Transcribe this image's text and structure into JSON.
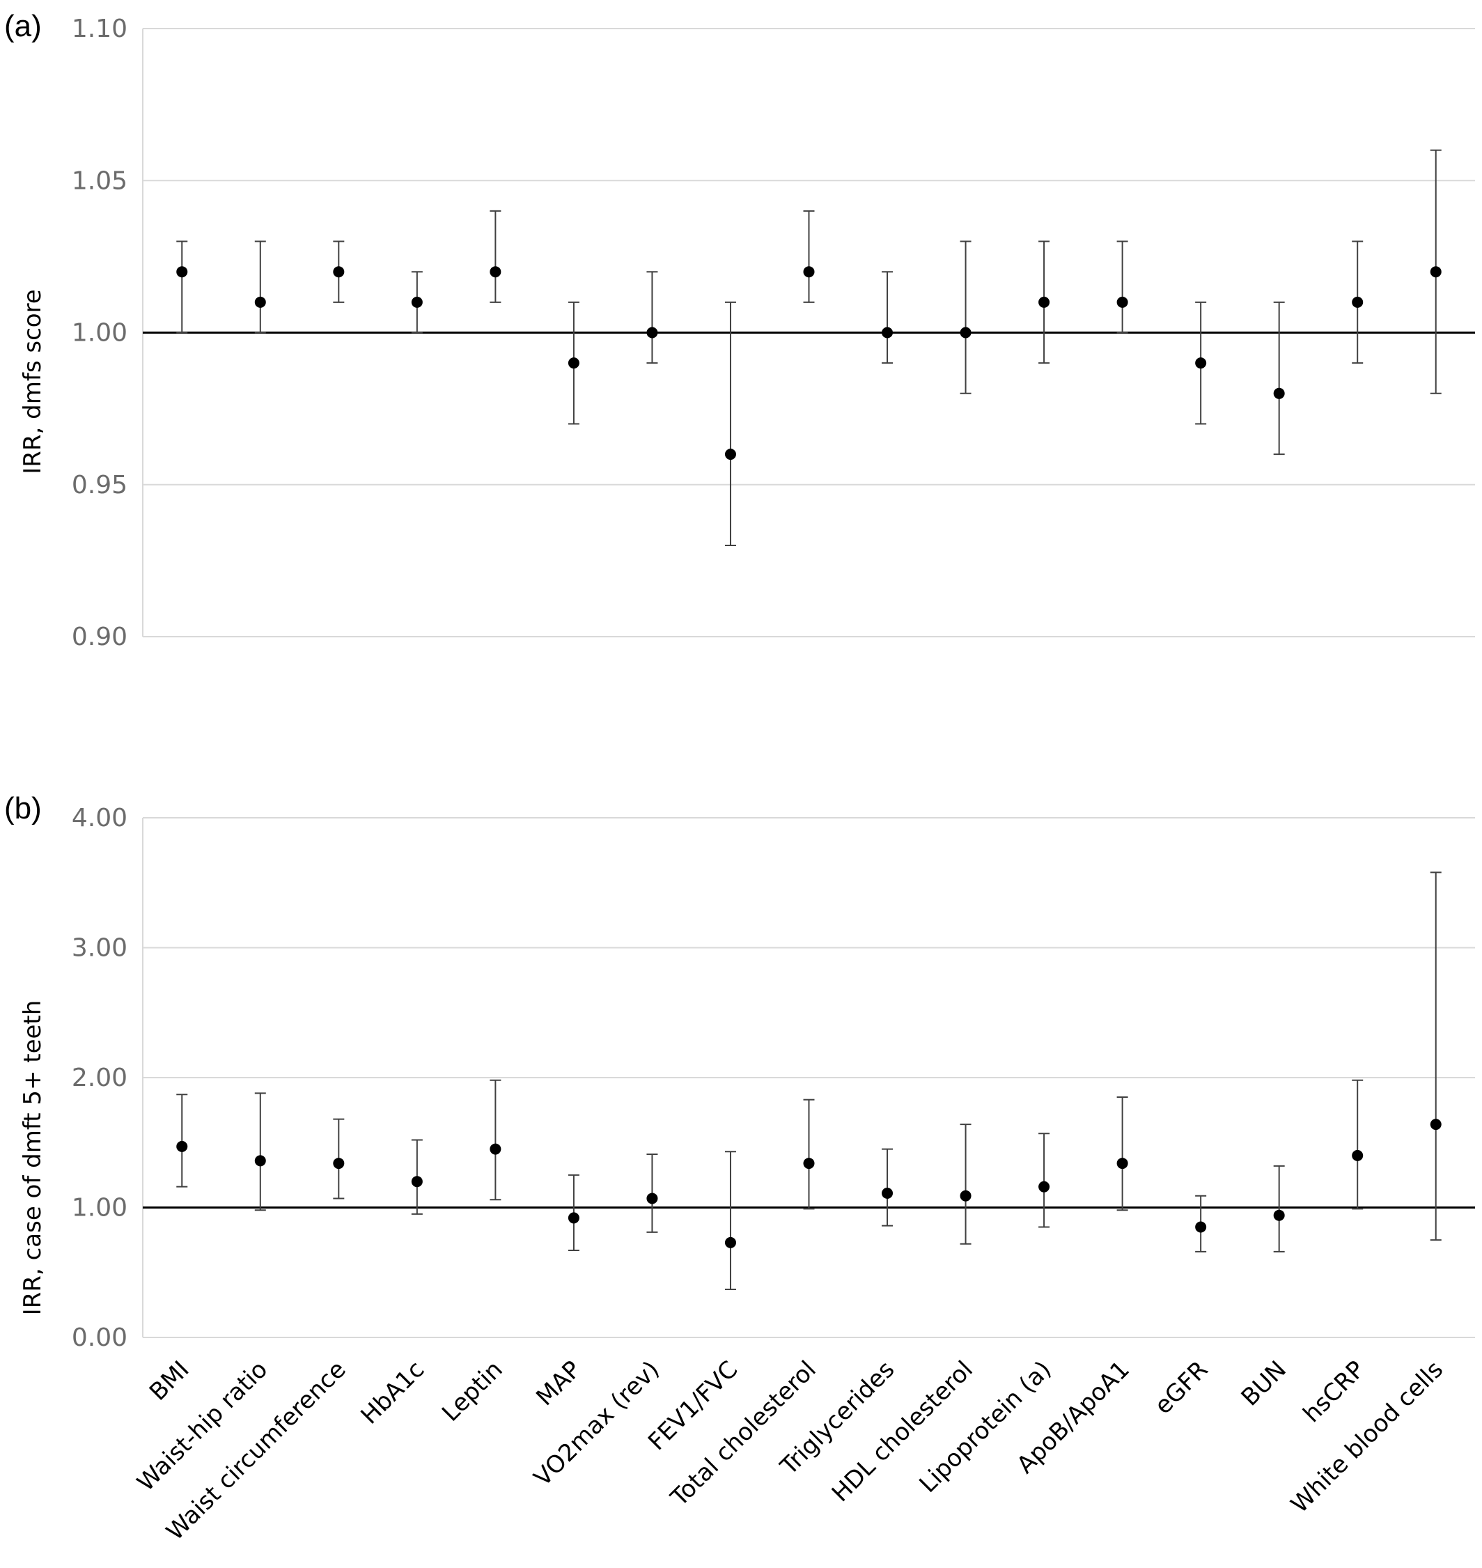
{
  "categories": [
    "BMI",
    "Waist-hip ratio",
    "Waist circumference",
    "HbA1c",
    "Leptin",
    "MAP",
    "VO2max (rev)",
    "FEV1/FVC",
    "Total cholesterol",
    "Triglycerides",
    "HDL cholesterol",
    "Lipoprotein (a)",
    "ApoB/ApoA1",
    "eGFR",
    "BUN",
    "hsCRP",
    "White blood cells"
  ],
  "chart_data": [
    {
      "type": "scatter",
      "panel_label": "(a)",
      "ylabel": "IRR, dmfs score",
      "ylim": [
        0.9,
        1.1
      ],
      "yticks": [
        "0.90",
        "0.95",
        "1.00",
        "1.05",
        "1.10"
      ],
      "reference_line": 1.0,
      "grid": true,
      "points": [
        {
          "category": "BMI",
          "estimate": 1.02,
          "lower": 1.0,
          "upper": 1.03
        },
        {
          "category": "Waist-hip ratio",
          "estimate": 1.01,
          "lower": 1.0,
          "upper": 1.03
        },
        {
          "category": "Waist circumference",
          "estimate": 1.02,
          "lower": 1.01,
          "upper": 1.03
        },
        {
          "category": "HbA1c",
          "estimate": 1.01,
          "lower": 1.0,
          "upper": 1.02
        },
        {
          "category": "Leptin",
          "estimate": 1.02,
          "lower": 1.01,
          "upper": 1.04
        },
        {
          "category": "MAP",
          "estimate": 0.99,
          "lower": 0.97,
          "upper": 1.01
        },
        {
          "category": "VO2max (rev)",
          "estimate": 1.0,
          "lower": 0.99,
          "upper": 1.02
        },
        {
          "category": "FEV1/FVC",
          "estimate": 0.96,
          "lower": 0.93,
          "upper": 1.01
        },
        {
          "category": "Total cholesterol",
          "estimate": 1.02,
          "lower": 1.01,
          "upper": 1.04
        },
        {
          "category": "Triglycerides",
          "estimate": 1.0,
          "lower": 0.99,
          "upper": 1.02
        },
        {
          "category": "HDL cholesterol",
          "estimate": 1.0,
          "lower": 0.98,
          "upper": 1.03
        },
        {
          "category": "Lipoprotein (a)",
          "estimate": 1.01,
          "lower": 0.99,
          "upper": 1.03
        },
        {
          "category": "ApoB/ApoA1",
          "estimate": 1.01,
          "lower": 1.0,
          "upper": 1.03
        },
        {
          "category": "eGFR",
          "estimate": 0.99,
          "lower": 0.97,
          "upper": 1.01
        },
        {
          "category": "BUN",
          "estimate": 0.98,
          "lower": 0.96,
          "upper": 1.01
        },
        {
          "category": "hsCRP",
          "estimate": 1.01,
          "lower": 0.99,
          "upper": 1.03
        },
        {
          "category": "White blood cells",
          "estimate": 1.02,
          "lower": 0.98,
          "upper": 1.06
        }
      ]
    },
    {
      "type": "scatter",
      "panel_label": "(b)",
      "ylabel": "IRR, case of dmft 5+ teeth",
      "ylim": [
        0.0,
        4.0
      ],
      "yticks": [
        "0.00",
        "1.00",
        "2.00",
        "3.00",
        "4.00"
      ],
      "reference_line": 1.0,
      "grid": true,
      "points": [
        {
          "category": "BMI",
          "estimate": 1.47,
          "lower": 1.16,
          "upper": 1.87
        },
        {
          "category": "Waist-hip ratio",
          "estimate": 1.36,
          "lower": 0.98,
          "upper": 1.88
        },
        {
          "category": "Waist circumference",
          "estimate": 1.34,
          "lower": 1.07,
          "upper": 1.68
        },
        {
          "category": "HbA1c",
          "estimate": 1.2,
          "lower": 0.95,
          "upper": 1.52
        },
        {
          "category": "Leptin",
          "estimate": 1.45,
          "lower": 1.06,
          "upper": 1.98
        },
        {
          "category": "MAP",
          "estimate": 0.92,
          "lower": 0.67,
          "upper": 1.25
        },
        {
          "category": "VO2max (rev)",
          "estimate": 1.07,
          "lower": 0.81,
          "upper": 1.41
        },
        {
          "category": "FEV1/FVC",
          "estimate": 0.73,
          "lower": 0.37,
          "upper": 1.43
        },
        {
          "category": "Total cholesterol",
          "estimate": 1.34,
          "lower": 0.99,
          "upper": 1.83
        },
        {
          "category": "Triglycerides",
          "estimate": 1.11,
          "lower": 0.86,
          "upper": 1.45
        },
        {
          "category": "HDL cholesterol",
          "estimate": 1.09,
          "lower": 0.72,
          "upper": 1.64
        },
        {
          "category": "Lipoprotein (a)",
          "estimate": 1.16,
          "lower": 0.85,
          "upper": 1.57
        },
        {
          "category": "ApoB/ApoA1",
          "estimate": 1.34,
          "lower": 0.98,
          "upper": 1.85
        },
        {
          "category": "eGFR",
          "estimate": 0.85,
          "lower": 0.66,
          "upper": 1.09
        },
        {
          "category": "BUN",
          "estimate": 0.94,
          "lower": 0.66,
          "upper": 1.32
        },
        {
          "category": "hsCRP",
          "estimate": 1.4,
          "lower": 0.99,
          "upper": 1.98
        },
        {
          "category": "White blood cells",
          "estimate": 1.64,
          "lower": 0.75,
          "upper": 3.58
        }
      ]
    }
  ]
}
